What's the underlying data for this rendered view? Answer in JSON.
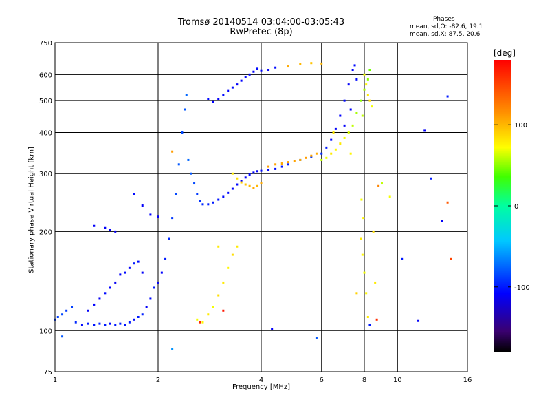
{
  "chart_data": {
    "type": "scatter",
    "title": "Tromsø 20140514 03:04:00-03:05:43",
    "subtitle": "RwPretec (8p)",
    "xlabel": "Frequency [MHz]",
    "ylabel": "Stationary phase Virtual Height [km]",
    "x_scale": "log",
    "y_scale": "log",
    "xlim": [
      1,
      16
    ],
    "ylim": [
      75,
      750
    ],
    "x_ticks": [
      1,
      2,
      4,
      6,
      8,
      10,
      16
    ],
    "y_ticks": [
      75,
      100,
      200,
      300,
      400,
      500,
      600,
      750
    ],
    "grid": true,
    "stats": {
      "title": "Phases",
      "o_line": "mean, sd,O: -82.6, 19.1",
      "x_line": "mean, sd,X: 87.5, 20.6"
    },
    "colorbar": {
      "label": "[deg]",
      "range": [
        -180,
        180
      ],
      "ticks": [
        {
          "value": 100,
          "label": "100"
        },
        {
          "value": 0,
          "label": "0"
        },
        {
          "value": -100,
          "label": "-100"
        }
      ]
    },
    "series": [
      {
        "points": [
          [
            1.0,
            108,
            -90
          ],
          [
            1.02,
            110,
            -88
          ],
          [
            1.05,
            112,
            -85
          ],
          [
            1.08,
            115,
            -90
          ],
          [
            1.12,
            118,
            -88
          ],
          [
            1.15,
            106,
            -95
          ],
          [
            1.2,
            104,
            -105
          ],
          [
            1.25,
            105,
            -100
          ],
          [
            1.3,
            104,
            -102
          ],
          [
            1.35,
            105,
            -98
          ],
          [
            1.4,
            104,
            -100
          ],
          [
            1.45,
            105,
            -105
          ],
          [
            1.5,
            104,
            -100
          ],
          [
            1.55,
            105,
            -98
          ],
          [
            1.6,
            104,
            -102
          ],
          [
            1.65,
            106,
            -100
          ],
          [
            1.7,
            108,
            -105
          ],
          [
            1.75,
            110,
            -100
          ],
          [
            1.8,
            112,
            -98
          ],
          [
            1.85,
            118,
            -110
          ],
          [
            1.9,
            125,
            -105
          ],
          [
            1.95,
            135,
            -100
          ],
          [
            2.0,
            140,
            -112
          ],
          [
            2.05,
            150,
            -108
          ],
          [
            2.1,
            165,
            -100
          ],
          [
            2.15,
            190,
            -95
          ],
          [
            2.2,
            220,
            -90
          ],
          [
            2.25,
            260,
            -85
          ],
          [
            2.3,
            320,
            -80
          ],
          [
            2.35,
            400,
            -85
          ],
          [
            2.4,
            470,
            -80
          ],
          [
            2.42,
            520,
            -75
          ],
          [
            1.25,
            115,
            -110
          ],
          [
            1.3,
            120,
            -108
          ],
          [
            1.35,
            125,
            -112
          ],
          [
            1.4,
            130,
            -105
          ],
          [
            1.45,
            135,
            -108
          ],
          [
            1.5,
            140,
            -112
          ],
          [
            1.55,
            148,
            -110
          ],
          [
            1.6,
            150,
            -105
          ],
          [
            1.65,
            155,
            -110
          ],
          [
            1.7,
            160,
            -100
          ],
          [
            1.75,
            162,
            -105
          ],
          [
            1.8,
            150,
            -110
          ],
          [
            1.4,
            205,
            -110
          ],
          [
            1.45,
            202,
            -108
          ],
          [
            1.5,
            200,
            -112
          ],
          [
            1.7,
            260,
            -105
          ],
          [
            1.8,
            240,
            -110
          ],
          [
            1.9,
            225,
            -108
          ],
          [
            2.0,
            222,
            -112
          ],
          [
            1.3,
            208,
            -110
          ],
          [
            2.45,
            330,
            -75
          ],
          [
            2.5,
            300,
            -80
          ],
          [
            2.55,
            280,
            -85
          ],
          [
            2.6,
            260,
            -90
          ],
          [
            2.65,
            248,
            -92
          ],
          [
            2.7,
            242,
            -95
          ],
          [
            2.8,
            242,
            -98
          ],
          [
            2.9,
            245,
            -100
          ],
          [
            3.0,
            250,
            -102
          ],
          [
            3.1,
            255,
            -105
          ],
          [
            3.2,
            262,
            -105
          ],
          [
            3.3,
            270,
            -108
          ],
          [
            3.4,
            278,
            -105
          ],
          [
            3.5,
            285,
            -108
          ],
          [
            3.6,
            292,
            -110
          ],
          [
            3.7,
            298,
            -105
          ],
          [
            3.8,
            302,
            -108
          ],
          [
            3.9,
            305,
            -110
          ],
          [
            4.0,
            306,
            -105
          ],
          [
            4.2,
            307,
            -108
          ],
          [
            4.4,
            310,
            -105
          ],
          [
            4.6,
            315,
            -102
          ],
          [
            4.8,
            320,
            -100
          ],
          [
            2.8,
            505,
            -105
          ],
          [
            2.9,
            495,
            -108
          ],
          [
            3.0,
            505,
            -110
          ],
          [
            3.1,
            520,
            -105
          ],
          [
            3.2,
            535,
            -108
          ],
          [
            3.3,
            548,
            -105
          ],
          [
            3.4,
            560,
            -110
          ],
          [
            3.5,
            575,
            -108
          ],
          [
            3.6,
            590,
            -105
          ],
          [
            3.7,
            600,
            -108
          ],
          [
            3.8,
            612,
            -110
          ],
          [
            3.9,
            625,
            -105
          ],
          [
            4.0,
            618,
            -108
          ],
          [
            4.2,
            620,
            -110
          ],
          [
            4.4,
            630,
            -105
          ],
          [
            5.2,
            330,
            -80
          ],
          [
            5.6,
            338,
            -90
          ],
          [
            6.0,
            345,
            -95
          ],
          [
            6.2,
            360,
            -100
          ],
          [
            6.4,
            380,
            -105
          ],
          [
            6.6,
            410,
            -110
          ],
          [
            6.8,
            450,
            -108
          ],
          [
            7.0,
            500,
            -105
          ],
          [
            7.2,
            560,
            -110
          ],
          [
            7.4,
            620,
            -108
          ],
          [
            7.5,
            640,
            -105
          ],
          [
            7.0,
            420,
            -110
          ],
          [
            7.3,
            470,
            -108
          ],
          [
            7.6,
            580,
            -105
          ],
          [
            2.2,
            88,
            -60
          ],
          [
            1.05,
            96,
            -80
          ],
          [
            12.0,
            405,
            -110
          ],
          [
            12.5,
            290,
            -100
          ],
          [
            13.5,
            215,
            -110
          ],
          [
            14.0,
            515,
            -100
          ],
          [
            11.5,
            107,
            -110
          ],
          [
            8.3,
            104,
            -100
          ],
          [
            5.8,
            95,
            -80
          ],
          [
            4.3,
            101,
            -110
          ],
          [
            10.3,
            165,
            -100
          ]
        ]
      },
      {
        "points": [
          [
            2.6,
            108,
            70
          ],
          [
            2.7,
            106,
            75
          ],
          [
            2.8,
            112,
            80
          ],
          [
            2.9,
            118,
            70
          ],
          [
            3.0,
            128,
            85
          ],
          [
            3.1,
            140,
            80
          ],
          [
            3.2,
            155,
            75
          ],
          [
            3.3,
            170,
            85
          ],
          [
            3.4,
            180,
            80
          ],
          [
            3.3,
            300,
            80
          ],
          [
            3.4,
            290,
            85
          ],
          [
            3.5,
            282,
            90
          ],
          [
            3.6,
            278,
            95
          ],
          [
            3.7,
            275,
            100
          ],
          [
            3.8,
            272,
            105
          ],
          [
            3.9,
            275,
            100
          ],
          [
            4.0,
            280,
            105
          ],
          [
            4.2,
            315,
            110
          ],
          [
            4.4,
            320,
            108
          ],
          [
            4.6,
            322,
            105
          ],
          [
            4.8,
            325,
            110
          ],
          [
            5.0,
            328,
            108
          ],
          [
            5.2,
            330,
            105
          ],
          [
            5.4,
            335,
            110
          ],
          [
            5.6,
            340,
            108
          ],
          [
            5.8,
            345,
            105
          ],
          [
            6.0,
            330,
            60
          ],
          [
            6.2,
            335,
            70
          ],
          [
            6.4,
            345,
            80
          ],
          [
            6.6,
            355,
            75
          ],
          [
            6.8,
            370,
            80
          ],
          [
            7.0,
            385,
            70
          ],
          [
            7.2,
            400,
            65
          ],
          [
            7.4,
            420,
            60
          ],
          [
            7.6,
            460,
            55
          ],
          [
            7.8,
            500,
            50
          ],
          [
            8.0,
            540,
            55
          ],
          [
            8.2,
            580,
            50
          ],
          [
            8.3,
            620,
            45
          ],
          [
            8.0,
            600,
            70
          ],
          [
            8.1,
            560,
            75
          ],
          [
            8.2,
            520,
            80
          ],
          [
            8.3,
            500,
            85
          ],
          [
            8.4,
            480,
            70
          ],
          [
            7.9,
            450,
            60
          ],
          [
            7.8,
            190,
            80
          ],
          [
            7.9,
            170,
            75
          ],
          [
            8.0,
            150,
            70
          ],
          [
            8.1,
            130,
            75
          ],
          [
            8.2,
            110,
            80
          ],
          [
            7.85,
            250,
            70
          ],
          [
            7.95,
            220,
            75
          ],
          [
            8.6,
            140,
            80
          ],
          [
            8.5,
            200,
            85
          ],
          [
            5.2,
            645,
            100
          ],
          [
            5.6,
            650,
            95
          ],
          [
            6.0,
            648,
            100
          ],
          [
            4.8,
            635,
            105
          ],
          [
            3.0,
            180,
            80
          ],
          [
            9.0,
            280,
            60
          ],
          [
            9.5,
            255,
            70
          ],
          [
            7.3,
            345,
            75
          ],
          [
            6.5,
            400,
            80
          ],
          [
            3.1,
            115,
            170
          ],
          [
            2.65,
            106,
            160
          ],
          [
            14.3,
            165,
            150
          ],
          [
            14.0,
            245,
            140
          ],
          [
            2.2,
            350,
            110
          ],
          [
            8.8,
            275,
            120
          ],
          [
            7.6,
            130,
            90
          ],
          [
            8.7,
            108,
            160
          ]
        ]
      }
    ]
  }
}
